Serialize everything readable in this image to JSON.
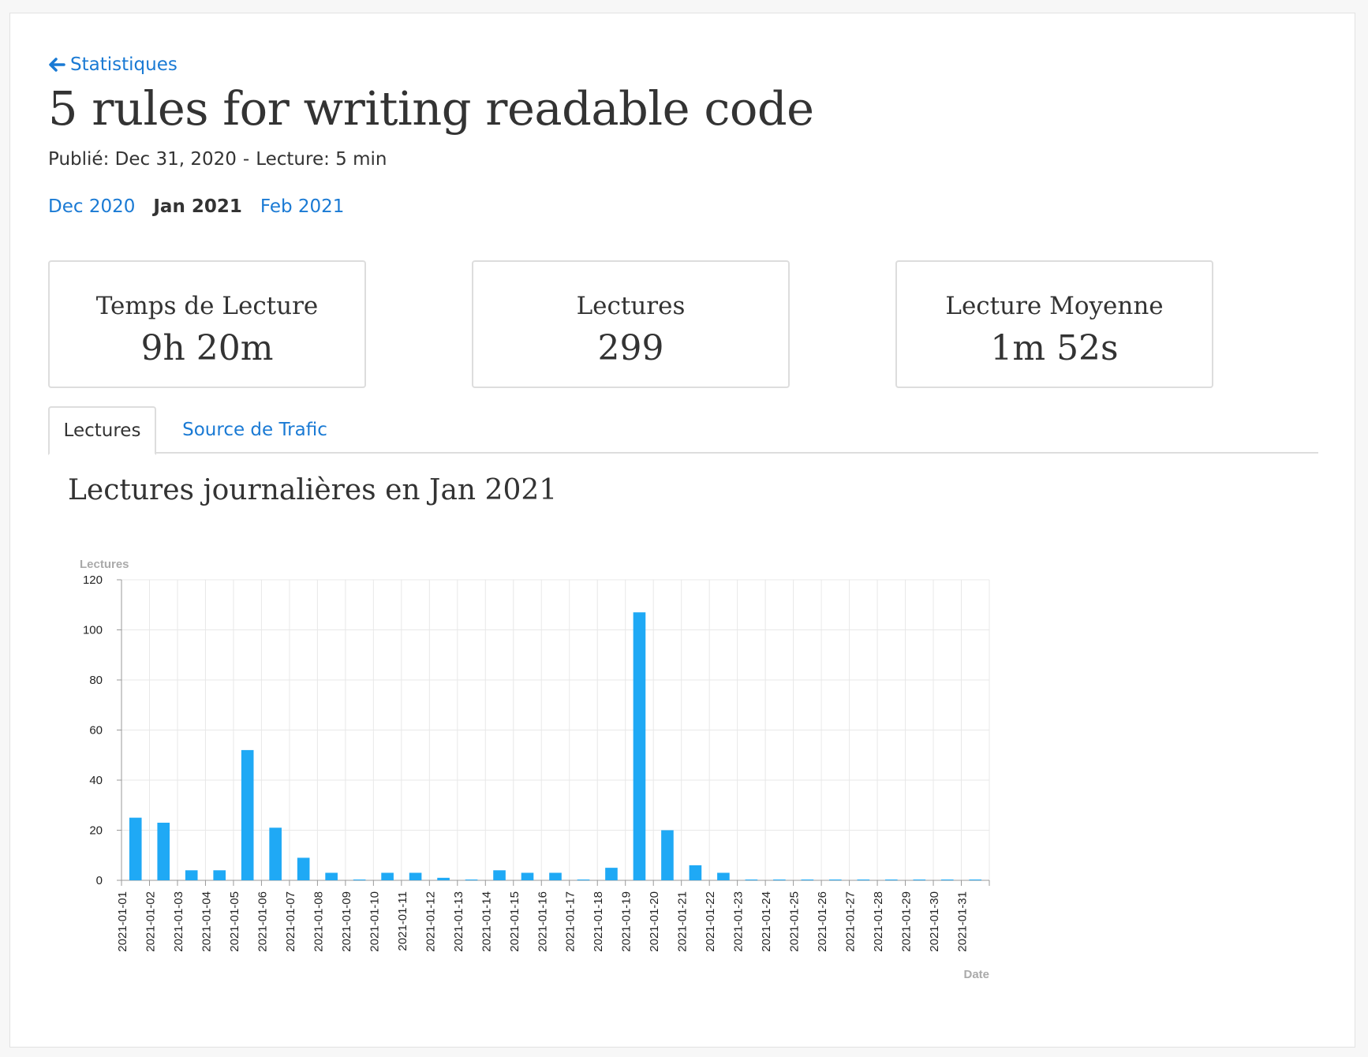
{
  "nav": {
    "back_label": "Statistiques",
    "back_icon": "arrow-left-icon"
  },
  "article": {
    "title": "5 rules for writing readable code",
    "published": "Publié: Dec 31, 2020",
    "separator": "-",
    "reading_time": "Lecture: 5 min"
  },
  "months": {
    "prev": "Dec 2020",
    "current": "Jan 2021",
    "next": "Feb 2021"
  },
  "stats": [
    {
      "label": "Temps de Lecture",
      "value": "9h 20m"
    },
    {
      "label": "Lectures",
      "value": "299"
    },
    {
      "label": "Lecture Moyenne",
      "value": "1m 52s"
    }
  ],
  "tabs": {
    "active": "Lectures",
    "other": "Source de Trafic"
  },
  "chart_title": "Lectures journalières en Jan 2021",
  "colors": {
    "link": "#1a7ad4",
    "bar": "#1fa9f5",
    "text": "#333333"
  },
  "chart_data": {
    "type": "bar",
    "xlabel": "Date",
    "ylabel": "Lectures",
    "ylim": [
      0,
      120
    ],
    "yticks": [
      0,
      20,
      40,
      60,
      80,
      100,
      120
    ],
    "grid": true,
    "categories": [
      "2021-01-01",
      "2021-01-02",
      "2021-01-03",
      "2021-01-04",
      "2021-01-05",
      "2021-01-06",
      "2021-01-07",
      "2021-01-08",
      "2021-01-09",
      "2021-01-10",
      "2021-01-11",
      "2021-01-12",
      "2021-01-13",
      "2021-01-14",
      "2021-01-15",
      "2021-01-16",
      "2021-01-17",
      "2021-01-18",
      "2021-01-19",
      "2021-01-20",
      "2021-01-21",
      "2021-01-22",
      "2021-01-23",
      "2021-01-24",
      "2021-01-25",
      "2021-01-26",
      "2021-01-27",
      "2021-01-28",
      "2021-01-29",
      "2021-01-30",
      "2021-01-31"
    ],
    "values": [
      25,
      23,
      4,
      4,
      52,
      21,
      9,
      3,
      0,
      3,
      3,
      1,
      0,
      4,
      3,
      3,
      0,
      5,
      107,
      20,
      6,
      3,
      0,
      0,
      0,
      0,
      0,
      0,
      0,
      0,
      0
    ]
  }
}
